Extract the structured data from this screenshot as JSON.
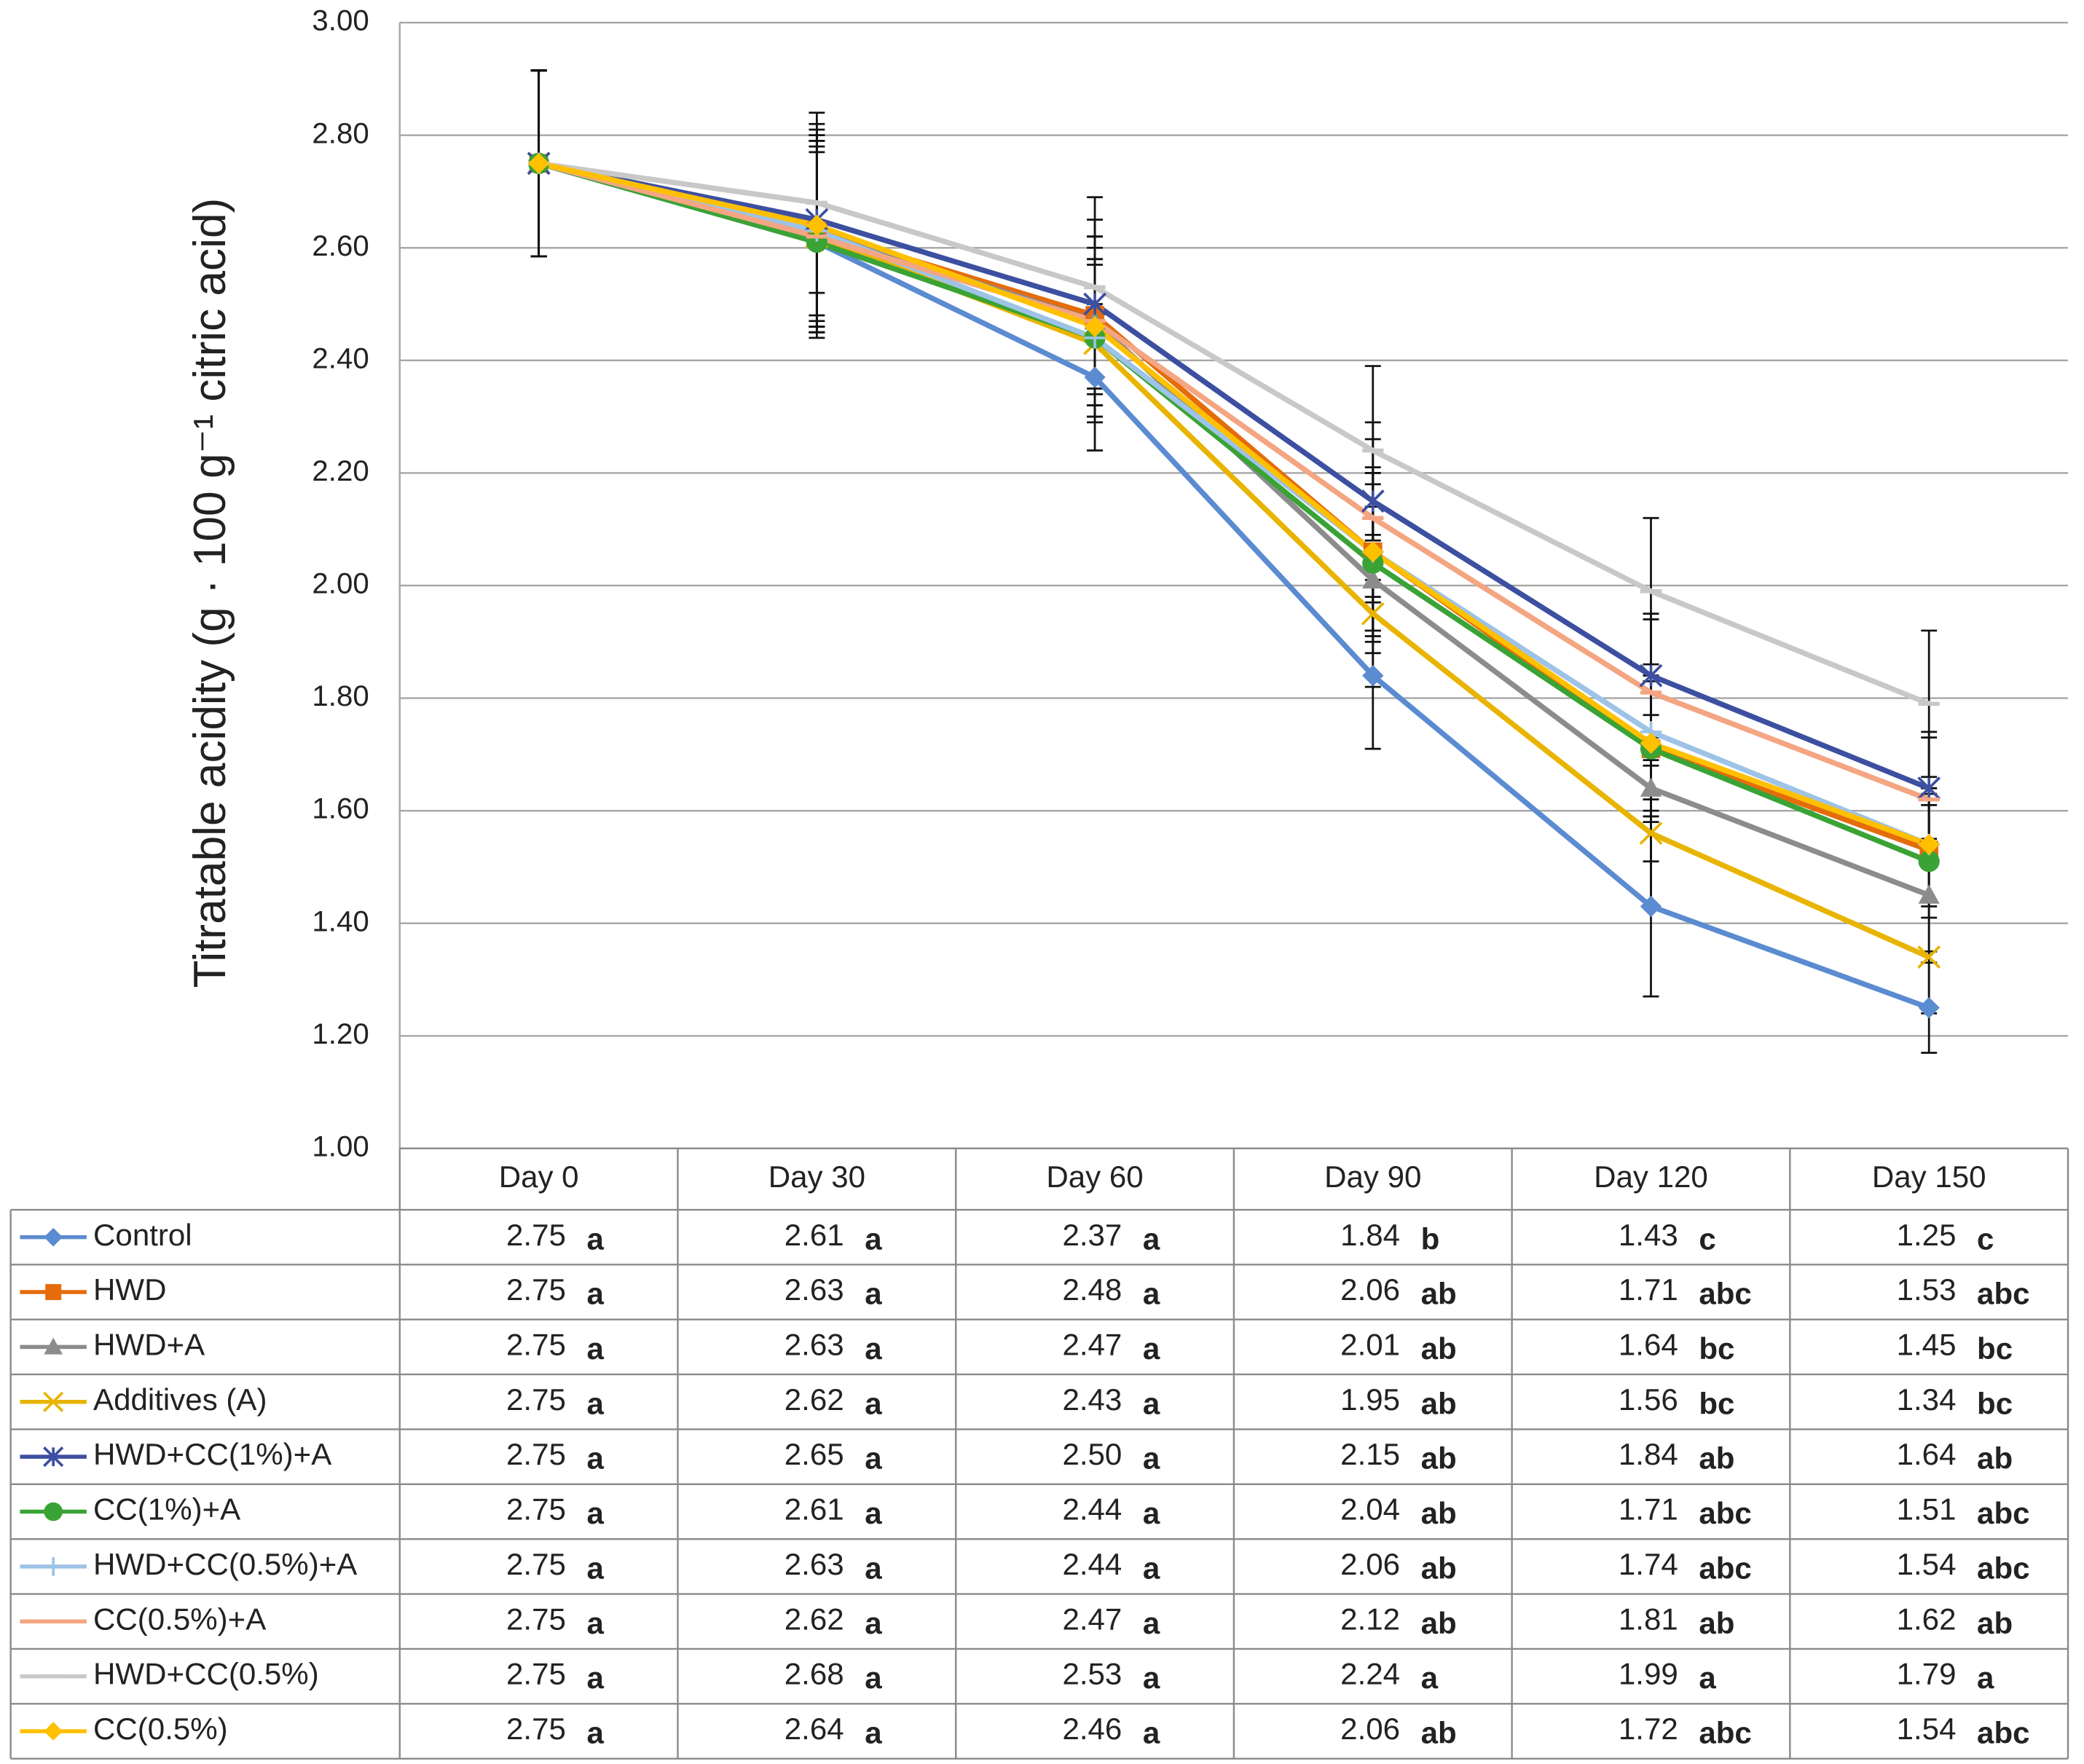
{
  "chart_data": {
    "type": "line",
    "y_label": "Titratable acidity (g · 100 g⁻¹ citric acid)",
    "categories": [
      "Day 0",
      "Day 30",
      "Day 60",
      "Day 90",
      "Day 120",
      "Day 150"
    ],
    "ylim": [
      1.0,
      3.0
    ],
    "yticks": [
      {
        "value": 1.0,
        "label": "1.00"
      },
      {
        "value": 1.2,
        "label": "1.20"
      },
      {
        "value": 1.4,
        "label": "1.40"
      },
      {
        "value": 1.6,
        "label": "1.60"
      },
      {
        "value": 1.8,
        "label": "1.80"
      },
      {
        "value": 2.0,
        "label": "2.00"
      },
      {
        "value": 2.2,
        "label": "2.20"
      },
      {
        "value": 2.4,
        "label": "2.40"
      },
      {
        "value": 2.6,
        "label": "2.60"
      },
      {
        "value": 2.8,
        "label": "2.80"
      },
      {
        "value": 3.0,
        "label": "3.00"
      }
    ],
    "grid": true,
    "series": [
      {
        "name": "Control",
        "color": "#5b8bd0",
        "marker": "diamond",
        "values": [
          2.75,
          2.61,
          2.37,
          1.84,
          1.43,
          1.25
        ],
        "errors": [
          0.165,
          0.16,
          0.13,
          0.13,
          0.16,
          0.08
        ],
        "letters": [
          "a",
          "a",
          "a",
          "b",
          "c",
          "c"
        ]
      },
      {
        "name": "HWD",
        "color": "#e46c0a",
        "marker": "square",
        "values": [
          2.75,
          2.63,
          2.48,
          2.06,
          1.71,
          1.53
        ],
        "errors": [
          0.165,
          0.17,
          0.14,
          0.15,
          0.13,
          0.1
        ],
        "letters": [
          "a",
          "a",
          "a",
          "ab",
          "abc",
          "abc"
        ]
      },
      {
        "name": "HWD+A",
        "color": "#8c8c8c",
        "marker": "triangle",
        "values": [
          2.75,
          2.63,
          2.47,
          2.01,
          1.64,
          1.45
        ],
        "errors": [
          0.165,
          0.17,
          0.15,
          0.13,
          0.13,
          0.1
        ],
        "letters": [
          "a",
          "a",
          "a",
          "ab",
          "bc",
          "bc"
        ]
      },
      {
        "name": "Additives (A)",
        "color": "#e8b400",
        "marker": "x",
        "values": [
          2.75,
          2.62,
          2.43,
          1.95,
          1.56,
          1.34
        ],
        "errors": [
          0.165,
          0.17,
          0.14,
          0.13,
          0.13,
          0.1
        ],
        "letters": [
          "a",
          "a",
          "a",
          "ab",
          "bc",
          "bc"
        ]
      },
      {
        "name": "HWD+CC(1%)+A",
        "color": "#3c4fa0",
        "marker": "asterisk",
        "values": [
          2.75,
          2.65,
          2.5,
          2.15,
          1.84,
          1.64
        ],
        "value_labels": [
          "2.75",
          "2.65",
          "2.50",
          "2.15",
          "1.84",
          "1.64"
        ],
        "errors": [
          0.165,
          0.17,
          0.15,
          0.14,
          0.11,
          0.1
        ],
        "letters": [
          "a",
          "a",
          "a",
          "ab",
          "ab",
          "ab"
        ]
      },
      {
        "name": "CC(1%)+A",
        "color": "#3aa335",
        "marker": "circle",
        "values": [
          2.75,
          2.61,
          2.44,
          2.04,
          1.71,
          1.51
        ],
        "errors": [
          0.165,
          0.17,
          0.14,
          0.14,
          0.12,
          0.1
        ],
        "letters": [
          "a",
          "a",
          "a",
          "ab",
          "abc",
          "abc"
        ]
      },
      {
        "name": "HWD+CC(0.5%)+A",
        "color": "#9dc3e6",
        "marker": "plus",
        "values": [
          2.75,
          2.63,
          2.44,
          2.06,
          1.74,
          1.54
        ],
        "errors": [
          0.165,
          0.17,
          0.14,
          0.14,
          0.12,
          0.1
        ],
        "letters": [
          "a",
          "a",
          "a",
          "ab",
          "abc",
          "abc"
        ]
      },
      {
        "name": "CC(0.5%)+A",
        "color": "#f4a582",
        "marker": "dash",
        "values": [
          2.75,
          2.62,
          2.47,
          2.12,
          1.81,
          1.62
        ],
        "errors": [
          0.165,
          0.17,
          0.15,
          0.14,
          0.13,
          0.11
        ],
        "letters": [
          "a",
          "a",
          "a",
          "ab",
          "ab",
          "ab"
        ]
      },
      {
        "name": "HWD+CC(0.5%)",
        "color": "#c8c8c8",
        "marker": "dash",
        "values": [
          2.75,
          2.68,
          2.53,
          2.24,
          1.99,
          1.79
        ],
        "errors": [
          0.165,
          0.16,
          0.16,
          0.15,
          0.13,
          0.13
        ],
        "letters": [
          "a",
          "a",
          "a",
          "a",
          "a",
          "a"
        ]
      },
      {
        "name": "CC(0.5%)",
        "color": "#ffc000",
        "marker": "diamond",
        "values": [
          2.75,
          2.64,
          2.46,
          2.06,
          1.72,
          1.54
        ],
        "errors": [
          0.165,
          0.17,
          0.14,
          0.14,
          0.12,
          0.1
        ],
        "letters": [
          "a",
          "a",
          "a",
          "ab",
          "abc",
          "abc"
        ]
      }
    ]
  }
}
